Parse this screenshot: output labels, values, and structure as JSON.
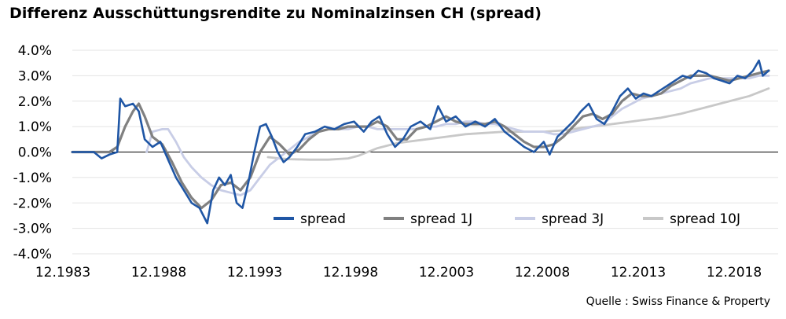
{
  "title": "Differenz Ausschüttungsrendite zu Nominalzinsen CH (spread)",
  "source": "Quelle : Swiss Finance & Property",
  "chart_data": {
    "type": "line",
    "title": "Differenz Ausschüttungsrendite zu Nominalzinsen CH (spread)",
    "xlabel": "",
    "ylabel": "",
    "x_ticks": [
      "12.1983",
      "12.1988",
      "12.1993",
      "12.1998",
      "12.2003",
      "12.2008",
      "12.2013",
      "12.2018"
    ],
    "y_ticks": [
      "4.0%",
      "3.0%",
      "2.0%",
      "1.0%",
      "0.0%",
      "-1.0%",
      "-2.0%",
      "-3.0%",
      "-4.0%"
    ],
    "ylim": [
      -4.0,
      4.0
    ],
    "xlim": [
      1983.9,
      2019.5
    ],
    "grid": "horizontal",
    "legend_position": "lower-right",
    "series": [
      {
        "name": "spread",
        "color": "#1f56a5",
        "points": [
          [
            1983.9,
            0.0
          ],
          [
            1985.0,
            0.0
          ],
          [
            1985.4,
            -0.25
          ],
          [
            1985.8,
            -0.1
          ],
          [
            1986.2,
            0.0
          ],
          [
            1986.35,
            2.1
          ],
          [
            1986.6,
            1.8
          ],
          [
            1987.0,
            1.9
          ],
          [
            1987.3,
            1.6
          ],
          [
            1987.6,
            0.5
          ],
          [
            1988.0,
            0.2
          ],
          [
            1988.4,
            0.4
          ],
          [
            1988.8,
            -0.3
          ],
          [
            1989.2,
            -1.0
          ],
          [
            1989.6,
            -1.5
          ],
          [
            1990.0,
            -2.0
          ],
          [
            1990.4,
            -2.2
          ],
          [
            1990.8,
            -2.8
          ],
          [
            1991.1,
            -1.5
          ],
          [
            1991.4,
            -1.0
          ],
          [
            1991.7,
            -1.3
          ],
          [
            1992.0,
            -0.9
          ],
          [
            1992.3,
            -2.0
          ],
          [
            1992.6,
            -2.2
          ],
          [
            1992.9,
            -1.2
          ],
          [
            1993.2,
            0.0
          ],
          [
            1993.5,
            1.0
          ],
          [
            1993.8,
            1.1
          ],
          [
            1994.1,
            0.6
          ],
          [
            1994.4,
            0.0
          ],
          [
            1994.7,
            -0.4
          ],
          [
            1995.0,
            -0.2
          ],
          [
            1995.4,
            0.2
          ],
          [
            1995.8,
            0.7
          ],
          [
            1996.3,
            0.8
          ],
          [
            1996.8,
            1.0
          ],
          [
            1997.3,
            0.9
          ],
          [
            1997.8,
            1.1
          ],
          [
            1998.3,
            1.2
          ],
          [
            1998.8,
            0.8
          ],
          [
            1999.2,
            1.2
          ],
          [
            1999.6,
            1.4
          ],
          [
            2000.0,
            0.7
          ],
          [
            2000.4,
            0.2
          ],
          [
            2000.8,
            0.5
          ],
          [
            2001.2,
            1.0
          ],
          [
            2001.7,
            1.2
          ],
          [
            2002.2,
            0.9
          ],
          [
            2002.6,
            1.8
          ],
          [
            2003.0,
            1.2
          ],
          [
            2003.5,
            1.4
          ],
          [
            2004.0,
            1.0
          ],
          [
            2004.5,
            1.2
          ],
          [
            2005.0,
            1.0
          ],
          [
            2005.5,
            1.3
          ],
          [
            2006.0,
            0.8
          ],
          [
            2006.5,
            0.5
          ],
          [
            2007.0,
            0.2
          ],
          [
            2007.5,
            0.0
          ],
          [
            2008.0,
            0.4
          ],
          [
            2008.3,
            -0.1
          ],
          [
            2008.7,
            0.6
          ],
          [
            2009.1,
            0.9
          ],
          [
            2009.5,
            1.2
          ],
          [
            2009.9,
            1.6
          ],
          [
            2010.3,
            1.9
          ],
          [
            2010.7,
            1.3
          ],
          [
            2011.1,
            1.1
          ],
          [
            2011.5,
            1.6
          ],
          [
            2011.9,
            2.2
          ],
          [
            2012.3,
            2.5
          ],
          [
            2012.7,
            2.1
          ],
          [
            2013.1,
            2.3
          ],
          [
            2013.5,
            2.2
          ],
          [
            2013.9,
            2.4
          ],
          [
            2014.3,
            2.6
          ],
          [
            2014.7,
            2.8
          ],
          [
            2015.1,
            3.0
          ],
          [
            2015.5,
            2.9
          ],
          [
            2015.9,
            3.2
          ],
          [
            2016.3,
            3.1
          ],
          [
            2016.7,
            2.9
          ],
          [
            2017.1,
            2.8
          ],
          [
            2017.5,
            2.7
          ],
          [
            2017.9,
            3.0
          ],
          [
            2018.3,
            2.9
          ],
          [
            2018.7,
            3.2
          ],
          [
            2019.0,
            3.6
          ],
          [
            2019.2,
            3.0
          ],
          [
            2019.5,
            3.2
          ]
        ]
      },
      {
        "name": "spread 1J",
        "color": "#808080",
        "points": [
          [
            1983.9,
            0.0
          ],
          [
            1985.8,
            0.0
          ],
          [
            1986.2,
            0.2
          ],
          [
            1986.6,
            1.0
          ],
          [
            1987.0,
            1.6
          ],
          [
            1987.3,
            1.9
          ],
          [
            1987.6,
            1.4
          ],
          [
            1988.0,
            0.6
          ],
          [
            1988.5,
            0.3
          ],
          [
            1989.0,
            -0.4
          ],
          [
            1989.5,
            -1.2
          ],
          [
            1990.0,
            -1.8
          ],
          [
            1990.5,
            -2.2
          ],
          [
            1991.0,
            -1.9
          ],
          [
            1991.5,
            -1.3
          ],
          [
            1992.0,
            -1.2
          ],
          [
            1992.5,
            -1.5
          ],
          [
            1993.0,
            -1.0
          ],
          [
            1993.5,
            0.0
          ],
          [
            1994.0,
            0.6
          ],
          [
            1994.5,
            0.3
          ],
          [
            1995.0,
            -0.1
          ],
          [
            1995.5,
            0.1
          ],
          [
            1996.0,
            0.5
          ],
          [
            1996.5,
            0.8
          ],
          [
            1997.0,
            0.9
          ],
          [
            1997.5,
            0.9
          ],
          [
            1998.0,
            1.0
          ],
          [
            1998.5,
            1.0
          ],
          [
            1999.0,
            1.0
          ],
          [
            1999.5,
            1.2
          ],
          [
            2000.0,
            1.0
          ],
          [
            2000.5,
            0.5
          ],
          [
            2001.0,
            0.5
          ],
          [
            2001.5,
            0.9
          ],
          [
            2002.0,
            1.0
          ],
          [
            2002.5,
            1.2
          ],
          [
            2003.0,
            1.4
          ],
          [
            2003.5,
            1.2
          ],
          [
            2004.0,
            1.1
          ],
          [
            2004.5,
            1.1
          ],
          [
            2005.0,
            1.1
          ],
          [
            2005.5,
            1.2
          ],
          [
            2006.0,
            1.0
          ],
          [
            2006.5,
            0.7
          ],
          [
            2007.0,
            0.4
          ],
          [
            2007.5,
            0.2
          ],
          [
            2008.0,
            0.2
          ],
          [
            2008.5,
            0.3
          ],
          [
            2009.0,
            0.6
          ],
          [
            2009.5,
            1.0
          ],
          [
            2010.0,
            1.4
          ],
          [
            2010.5,
            1.5
          ],
          [
            2011.0,
            1.3
          ],
          [
            2011.5,
            1.5
          ],
          [
            2012.0,
            2.0
          ],
          [
            2012.5,
            2.3
          ],
          [
            2013.0,
            2.2
          ],
          [
            2013.5,
            2.2
          ],
          [
            2014.0,
            2.3
          ],
          [
            2014.5,
            2.6
          ],
          [
            2015.0,
            2.8
          ],
          [
            2015.5,
            3.0
          ],
          [
            2016.0,
            3.0
          ],
          [
            2016.5,
            3.0
          ],
          [
            2017.0,
            2.9
          ],
          [
            2017.5,
            2.8
          ],
          [
            2018.0,
            2.9
          ],
          [
            2018.5,
            3.0
          ],
          [
            2019.0,
            3.1
          ],
          [
            2019.5,
            3.2
          ]
        ]
      },
      {
        "name": "spread 3J",
        "color": "#c8cde6",
        "points": [
          [
            1987.7,
            0.0
          ],
          [
            1988.0,
            0.8
          ],
          [
            1988.5,
            0.9
          ],
          [
            1988.8,
            0.9
          ],
          [
            1989.2,
            0.4
          ],
          [
            1989.6,
            -0.2
          ],
          [
            1990.0,
            -0.6
          ],
          [
            1990.5,
            -1.0
          ],
          [
            1991.0,
            -1.3
          ],
          [
            1991.5,
            -1.5
          ],
          [
            1992.0,
            -1.6
          ],
          [
            1992.5,
            -1.7
          ],
          [
            1993.0,
            -1.5
          ],
          [
            1993.5,
            -1.0
          ],
          [
            1994.0,
            -0.5
          ],
          [
            1994.5,
            -0.2
          ],
          [
            1995.0,
            0.1
          ],
          [
            1995.5,
            0.4
          ],
          [
            1996.0,
            0.6
          ],
          [
            1996.5,
            0.8
          ],
          [
            1997.0,
            0.9
          ],
          [
            1997.5,
            0.9
          ],
          [
            1998.0,
            0.9
          ],
          [
            1998.5,
            1.0
          ],
          [
            1999.0,
            1.0
          ],
          [
            1999.5,
            0.9
          ],
          [
            2000.0,
            0.9
          ],
          [
            2000.5,
            0.9
          ],
          [
            2001.0,
            0.9
          ],
          [
            2001.5,
            0.9
          ],
          [
            2002.0,
            1.0
          ],
          [
            2002.5,
            1.0
          ],
          [
            2003.0,
            1.1
          ],
          [
            2003.5,
            1.1
          ],
          [
            2004.0,
            1.2
          ],
          [
            2004.5,
            1.2
          ],
          [
            2005.0,
            1.1
          ],
          [
            2005.5,
            1.1
          ],
          [
            2006.0,
            1.0
          ],
          [
            2006.5,
            0.9
          ],
          [
            2007.0,
            0.8
          ],
          [
            2007.5,
            0.8
          ],
          [
            2008.0,
            0.8
          ],
          [
            2008.5,
            0.7
          ],
          [
            2009.0,
            0.7
          ],
          [
            2009.5,
            0.8
          ],
          [
            2010.0,
            0.9
          ],
          [
            2010.5,
            1.0
          ],
          [
            2011.0,
            1.1
          ],
          [
            2011.5,
            1.4
          ],
          [
            2012.0,
            1.7
          ],
          [
            2012.5,
            1.9
          ],
          [
            2013.0,
            2.1
          ],
          [
            2013.5,
            2.2
          ],
          [
            2014.0,
            2.3
          ],
          [
            2014.5,
            2.4
          ],
          [
            2015.0,
            2.5
          ],
          [
            2015.5,
            2.7
          ],
          [
            2016.0,
            2.8
          ],
          [
            2016.5,
            2.9
          ],
          [
            2017.0,
            2.9
          ],
          [
            2017.5,
            2.9
          ],
          [
            2018.0,
            2.9
          ],
          [
            2018.5,
            2.9
          ],
          [
            2019.0,
            3.0
          ],
          [
            2019.5,
            3.0
          ]
        ]
      },
      {
        "name": "spread 10J",
        "color": "#c8c8c8",
        "points": [
          [
            1993.9,
            -0.2
          ],
          [
            1994.5,
            -0.25
          ],
          [
            1995.0,
            -0.28
          ],
          [
            1996.0,
            -0.3
          ],
          [
            1997.0,
            -0.3
          ],
          [
            1998.0,
            -0.25
          ],
          [
            1998.5,
            -0.15
          ],
          [
            1999.0,
            0.0
          ],
          [
            1999.5,
            0.15
          ],
          [
            2000.0,
            0.25
          ],
          [
            2000.5,
            0.35
          ],
          [
            2001.0,
            0.4
          ],
          [
            2002.0,
            0.5
          ],
          [
            2003.0,
            0.6
          ],
          [
            2004.0,
            0.7
          ],
          [
            2005.0,
            0.75
          ],
          [
            2006.0,
            0.8
          ],
          [
            2007.0,
            0.8
          ],
          [
            2008.0,
            0.8
          ],
          [
            2009.0,
            0.85
          ],
          [
            2010.0,
            0.95
          ],
          [
            2011.0,
            1.05
          ],
          [
            2012.0,
            1.15
          ],
          [
            2013.0,
            1.25
          ],
          [
            2014.0,
            1.35
          ],
          [
            2015.0,
            1.5
          ],
          [
            2016.0,
            1.7
          ],
          [
            2017.0,
            1.9
          ],
          [
            2018.0,
            2.1
          ],
          [
            2018.5,
            2.2
          ],
          [
            2019.0,
            2.35
          ],
          [
            2019.5,
            2.5
          ]
        ]
      }
    ]
  }
}
